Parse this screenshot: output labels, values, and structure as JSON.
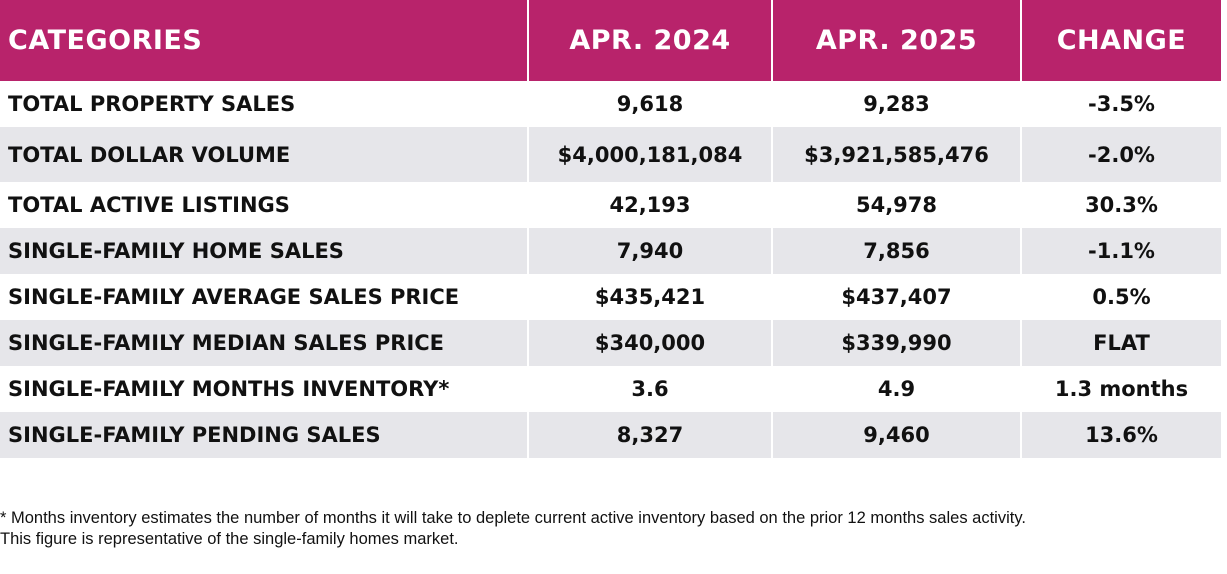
{
  "table": {
    "headers": [
      "CATEGORIES",
      "APR. 2024",
      "APR. 2025",
      "CHANGE"
    ],
    "rows": [
      [
        "TOTAL PROPERTY SALES",
        "9,618",
        "9,283",
        "-3.5%"
      ],
      [
        "TOTAL DOLLAR VOLUME",
        "$4,000,181,084",
        "$3,921,585,476",
        "-2.0%"
      ],
      [
        "TOTAL ACTIVE LISTINGS",
        "42,193",
        "54,978",
        "30.3%"
      ],
      [
        "SINGLE-FAMILY HOME SALES",
        "7,940",
        "7,856",
        "-1.1%"
      ],
      [
        "SINGLE-FAMILY AVERAGE SALES PRICE",
        "$435,421",
        "$437,407",
        "0.5%"
      ],
      [
        "SINGLE-FAMILY MEDIAN SALES PRICE",
        "$340,000",
        "$339,990",
        "FLAT"
      ],
      [
        "SINGLE-FAMILY MONTHS INVENTORY*",
        "3.6",
        "4.9",
        "1.3 months"
      ],
      [
        "SINGLE-FAMILY PENDING SALES",
        "8,327",
        "9,460",
        "13.6%"
      ]
    ]
  },
  "footnote": {
    "line1": "* Months inventory estimates the number of months it will take to deplete current active inventory based on the prior 12 months sales activity.",
    "line2": "This figure is representative of the single-family homes market."
  },
  "colors": {
    "header_bg": "#b8236b",
    "stripe_bg": "#e6e6ea"
  }
}
